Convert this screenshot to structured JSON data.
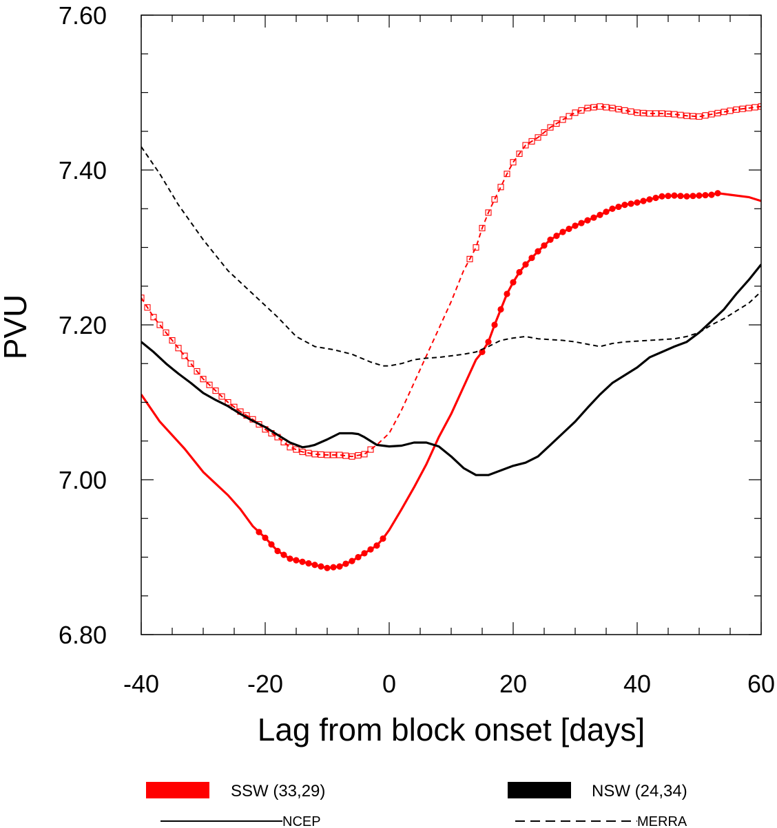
{
  "chart_data": {
    "type": "line",
    "xlabel": "Lag from block onset [days]",
    "ylabel": "PVU",
    "xlim": [
      -40,
      60
    ],
    "ylim": [
      6.8,
      7.6
    ],
    "xticks": [
      -40,
      -20,
      0,
      20,
      40,
      60
    ],
    "xtick_labels": [
      "-40",
      "-20",
      "0",
      "20",
      "40",
      "60"
    ],
    "yticks": [
      6.8,
      7.0,
      7.2,
      7.4,
      7.6
    ],
    "ytick_labels": [
      "6.80",
      "7.00",
      "7.20",
      "7.40",
      "7.60"
    ],
    "grid": false,
    "legend": {
      "placement": "bottom",
      "groups": [
        {
          "label": "SSW (33,29)",
          "color": "#ff0000"
        },
        {
          "label": "NSW (24,34)",
          "color": "#000000"
        }
      ],
      "styles": [
        {
          "label": "NCEP",
          "dash": "solid"
        },
        {
          "label": "MERRA",
          "dash": "dashed"
        }
      ]
    },
    "series": [
      {
        "group": "SSW (33,29)",
        "dataset": "NCEP",
        "color": "#ff0000",
        "dash": "solid",
        "marker": "filled-circle",
        "significant_ranges": [
          [
            -21,
            -1
          ],
          [
            15,
            53
          ]
        ],
        "points": [
          [
            -40,
            7.11
          ],
          [
            -37,
            7.075
          ],
          [
            -33,
            7.04
          ],
          [
            -30,
            7.01
          ],
          [
            -26,
            6.98
          ],
          [
            -24,
            6.962
          ],
          [
            -22,
            6.94
          ],
          [
            -20,
            6.925
          ],
          [
            -18,
            6.908
          ],
          [
            -16,
            6.898
          ],
          [
            -14,
            6.894
          ],
          [
            -12,
            6.89
          ],
          [
            -10,
            6.886
          ],
          [
            -8,
            6.888
          ],
          [
            -6,
            6.895
          ],
          [
            -4,
            6.905
          ],
          [
            -2,
            6.915
          ],
          [
            -1,
            6.924
          ],
          [
            0,
            6.935
          ],
          [
            2,
            6.962
          ],
          [
            4,
            6.99
          ],
          [
            6,
            7.02
          ],
          [
            8,
            7.055
          ],
          [
            10,
            7.085
          ],
          [
            12,
            7.12
          ],
          [
            14,
            7.155
          ],
          [
            15,
            7.165
          ],
          [
            16,
            7.178
          ],
          [
            17,
            7.2
          ],
          [
            18,
            7.22
          ],
          [
            19,
            7.24
          ],
          [
            20,
            7.255
          ],
          [
            21,
            7.268
          ],
          [
            22,
            7.278
          ],
          [
            24,
            7.295
          ],
          [
            26,
            7.31
          ],
          [
            28,
            7.32
          ],
          [
            30,
            7.328
          ],
          [
            32,
            7.335
          ],
          [
            34,
            7.342
          ],
          [
            36,
            7.35
          ],
          [
            38,
            7.355
          ],
          [
            40,
            7.358
          ],
          [
            42,
            7.362
          ],
          [
            44,
            7.366
          ],
          [
            46,
            7.367
          ],
          [
            48,
            7.366
          ],
          [
            50,
            7.367
          ],
          [
            52,
            7.368
          ],
          [
            53,
            7.37
          ],
          [
            55,
            7.368
          ],
          [
            58,
            7.365
          ],
          [
            60,
            7.36
          ]
        ]
      },
      {
        "group": "SSW (33,29)",
        "dataset": "MERRA",
        "color": "#ff0000",
        "dash": "dashed",
        "marker": "open-square",
        "significant_ranges": [
          [
            -40,
            -3
          ],
          [
            13,
            60
          ]
        ],
        "points": [
          [
            -40,
            7.235
          ],
          [
            -38,
            7.21
          ],
          [
            -36,
            7.19
          ],
          [
            -34,
            7.17
          ],
          [
            -32,
            7.15
          ],
          [
            -30,
            7.13
          ],
          [
            -28,
            7.115
          ],
          [
            -26,
            7.1
          ],
          [
            -24,
            7.088
          ],
          [
            -22,
            7.078
          ],
          [
            -20,
            7.065
          ],
          [
            -18,
            7.055
          ],
          [
            -16,
            7.042
          ],
          [
            -14,
            7.036
          ],
          [
            -12,
            7.033
          ],
          [
            -10,
            7.032
          ],
          [
            -8,
            7.032
          ],
          [
            -6,
            7.03
          ],
          [
            -4,
            7.033
          ],
          [
            -2,
            7.045
          ],
          [
            0,
            7.06
          ],
          [
            2,
            7.09
          ],
          [
            4,
            7.125
          ],
          [
            6,
            7.16
          ],
          [
            8,
            7.195
          ],
          [
            10,
            7.23
          ],
          [
            12,
            7.27
          ],
          [
            13,
            7.285
          ],
          [
            14,
            7.3
          ],
          [
            15,
            7.325
          ],
          [
            16,
            7.345
          ],
          [
            17,
            7.362
          ],
          [
            18,
            7.378
          ],
          [
            19,
            7.395
          ],
          [
            20,
            7.41
          ],
          [
            22,
            7.432
          ],
          [
            24,
            7.442
          ],
          [
            26,
            7.455
          ],
          [
            28,
            7.465
          ],
          [
            30,
            7.474
          ],
          [
            32,
            7.48
          ],
          [
            34,
            7.482
          ],
          [
            36,
            7.48
          ],
          [
            38,
            7.477
          ],
          [
            40,
            7.474
          ],
          [
            42,
            7.473
          ],
          [
            44,
            7.473
          ],
          [
            46,
            7.472
          ],
          [
            48,
            7.47
          ],
          [
            50,
            7.469
          ],
          [
            52,
            7.472
          ],
          [
            54,
            7.475
          ],
          [
            56,
            7.478
          ],
          [
            58,
            7.48
          ],
          [
            60,
            7.482
          ]
        ]
      },
      {
        "group": "NSW (24,34)",
        "dataset": "NCEP",
        "color": "#000000",
        "dash": "solid",
        "marker": "none",
        "significant_ranges": [],
        "points": [
          [
            -40,
            7.178
          ],
          [
            -38,
            7.165
          ],
          [
            -36,
            7.15
          ],
          [
            -34,
            7.137
          ],
          [
            -32,
            7.125
          ],
          [
            -30,
            7.112
          ],
          [
            -28,
            7.103
          ],
          [
            -26,
            7.095
          ],
          [
            -24,
            7.085
          ],
          [
            -22,
            7.076
          ],
          [
            -20,
            7.068
          ],
          [
            -18,
            7.058
          ],
          [
            -16,
            7.048
          ],
          [
            -14,
            7.042
          ],
          [
            -13,
            7.043
          ],
          [
            -12,
            7.045
          ],
          [
            -10,
            7.052
          ],
          [
            -8,
            7.06
          ],
          [
            -6,
            7.06
          ],
          [
            -5,
            7.059
          ],
          [
            -4,
            7.055
          ],
          [
            -2,
            7.045
          ],
          [
            0,
            7.043
          ],
          [
            2,
            7.044
          ],
          [
            4,
            7.048
          ],
          [
            6,
            7.048
          ],
          [
            8,
            7.043
          ],
          [
            10,
            7.03
          ],
          [
            12,
            7.015
          ],
          [
            14,
            7.006
          ],
          [
            16,
            7.006
          ],
          [
            18,
            7.012
          ],
          [
            20,
            7.018
          ],
          [
            22,
            7.022
          ],
          [
            24,
            7.03
          ],
          [
            26,
            7.045
          ],
          [
            28,
            7.06
          ],
          [
            30,
            7.075
          ],
          [
            32,
            7.093
          ],
          [
            34,
            7.11
          ],
          [
            36,
            7.125
          ],
          [
            38,
            7.135
          ],
          [
            40,
            7.145
          ],
          [
            42,
            7.158
          ],
          [
            44,
            7.165
          ],
          [
            46,
            7.172
          ],
          [
            48,
            7.178
          ],
          [
            50,
            7.19
          ],
          [
            52,
            7.205
          ],
          [
            54,
            7.22
          ],
          [
            56,
            7.24
          ],
          [
            58,
            7.258
          ],
          [
            60,
            7.278
          ]
        ]
      },
      {
        "group": "NSW (24,34)",
        "dataset": "MERRA",
        "color": "#000000",
        "dash": "dashed",
        "marker": "none",
        "significant_ranges": [],
        "points": [
          [
            -40,
            7.43
          ],
          [
            -37,
            7.395
          ],
          [
            -34,
            7.355
          ],
          [
            -30,
            7.31
          ],
          [
            -26,
            7.27
          ],
          [
            -22,
            7.24
          ],
          [
            -18,
            7.21
          ],
          [
            -15,
            7.185
          ],
          [
            -12,
            7.172
          ],
          [
            -9,
            7.168
          ],
          [
            -6,
            7.162
          ],
          [
            -3,
            7.152
          ],
          [
            -1,
            7.147
          ],
          [
            0,
            7.147
          ],
          [
            2,
            7.15
          ],
          [
            4,
            7.155
          ],
          [
            6,
            7.157
          ],
          [
            8,
            7.158
          ],
          [
            10,
            7.16
          ],
          [
            12,
            7.162
          ],
          [
            14,
            7.165
          ],
          [
            16,
            7.172
          ],
          [
            18,
            7.18
          ],
          [
            20,
            7.183
          ],
          [
            22,
            7.185
          ],
          [
            24,
            7.182
          ],
          [
            26,
            7.181
          ],
          [
            28,
            7.18
          ],
          [
            30,
            7.178
          ],
          [
            32,
            7.175
          ],
          [
            34,
            7.172
          ],
          [
            36,
            7.176
          ],
          [
            38,
            7.178
          ],
          [
            40,
            7.179
          ],
          [
            42,
            7.18
          ],
          [
            44,
            7.181
          ],
          [
            46,
            7.182
          ],
          [
            48,
            7.185
          ],
          [
            50,
            7.19
          ],
          [
            52,
            7.2
          ],
          [
            54,
            7.208
          ],
          [
            56,
            7.218
          ],
          [
            58,
            7.228
          ],
          [
            60,
            7.243
          ]
        ]
      }
    ]
  }
}
